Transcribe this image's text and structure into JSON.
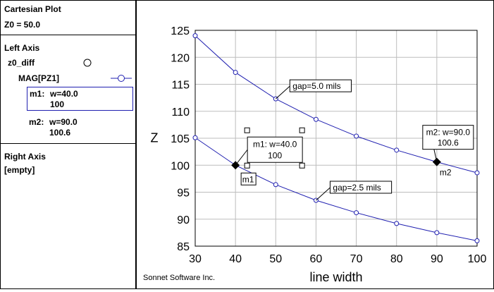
{
  "panel": {
    "title": "Cartesian Plot",
    "z0_line": "Z0 = 50.0",
    "left_axis_label": "Left Axis",
    "trace_name": "z0_diff",
    "measurement_name": "MAG[PZ1]",
    "markers": [
      {
        "id": "m1:",
        "w_text": "w=40.0",
        "value": "100"
      },
      {
        "id": "m2:",
        "w_text": "w=90.0",
        "value": "100.6"
      }
    ],
    "right_axis_label": "Right Axis",
    "right_axis_value": "[empty]"
  },
  "footer": {
    "credit": "Sonnet Software Inc."
  },
  "colors": {
    "trace": "#1f1fb0",
    "marker": "#000000",
    "grid": "#bdbdbd"
  },
  "chart_data": {
    "type": "line",
    "xlabel": "line width",
    "ylabel": "Z",
    "xlim": [
      30,
      100
    ],
    "ylim": [
      85,
      125
    ],
    "xticks": [
      30,
      40,
      50,
      60,
      70,
      80,
      90,
      100
    ],
    "yticks": [
      85,
      90,
      95,
      100,
      105,
      110,
      115,
      120,
      125
    ],
    "grid": true,
    "series": [
      {
        "x": [
          30,
          40,
          50,
          60,
          70,
          80,
          90,
          100
        ],
        "y": [
          124.0,
          117.2,
          112.3,
          108.5,
          105.4,
          102.8,
          100.6,
          98.6
        ]
      },
      {
        "x": [
          30,
          40,
          50,
          60,
          70,
          80,
          90,
          100
        ],
        "y": [
          105.1,
          100.0,
          96.4,
          93.5,
          91.2,
          89.2,
          87.5,
          86.0
        ]
      }
    ],
    "annotations": [
      {
        "text": "gap=5.0 mils",
        "x": 50,
        "y": 112.3
      },
      {
        "text": "gap=2.5 mils",
        "x": 60,
        "y": 93.5
      }
    ],
    "markers": [
      {
        "name": "m1",
        "x": 40,
        "y": 100,
        "line1": "m1: w=40.0",
        "line2": "100"
      },
      {
        "name": "m2",
        "x": 90,
        "y": 100.6,
        "line1": "m2: w=90.0",
        "line2": "100.6"
      }
    ]
  }
}
